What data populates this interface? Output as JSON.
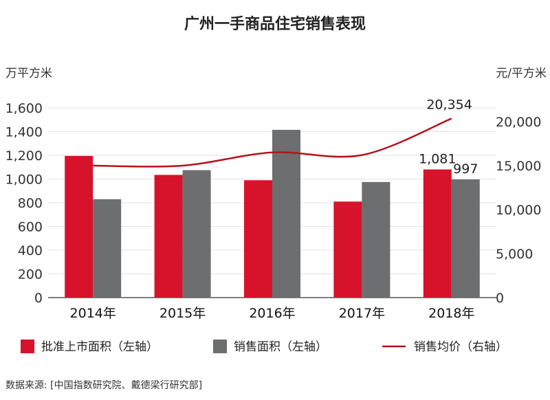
{
  "chart_data": {
    "type": "bar",
    "title": "广州一手商品住宅销售表现",
    "left_axis_unit": "万平方米",
    "right_axis_unit": "元/平方米",
    "categories": [
      "2014年",
      "2015年",
      "2016年",
      "2017年",
      "2018年"
    ],
    "series": [
      {
        "name": "批准上市面积（左轴）",
        "type": "bar",
        "axis": "left",
        "color": "#d7132b",
        "values": [
          1195,
          1035,
          990,
          810,
          1081
        ]
      },
      {
        "name": "销售面积（左轴）",
        "type": "bar",
        "axis": "left",
        "color": "#6d6e70",
        "values": [
          830,
          1075,
          1415,
          975,
          997
        ]
      },
      {
        "name": "销售均价（右轴）",
        "type": "line",
        "axis": "right",
        "color": "#b5121b",
        "values": [
          15000,
          15000,
          16500,
          16200,
          20354
        ]
      }
    ],
    "left_ylim": [
      0,
      1600
    ],
    "left_ticks": [
      "0",
      "200",
      "400",
      "600",
      "800",
      "1,000",
      "1,200",
      "1,400",
      "1,600"
    ],
    "right_ylim": [
      0,
      20000
    ],
    "right_ticks": [
      "0",
      "5,000",
      "10,000",
      "15,000",
      "20,000"
    ],
    "data_labels": [
      {
        "series": 0,
        "index": 4,
        "text": "1,081"
      },
      {
        "series": 1,
        "index": 4,
        "text": "997"
      },
      {
        "series": 2,
        "index": 4,
        "text": "20,354"
      }
    ],
    "grid": true,
    "legend_position": "bottom"
  },
  "source_note": "数据来源: [中国指数研究院、戴德梁行研究部]"
}
